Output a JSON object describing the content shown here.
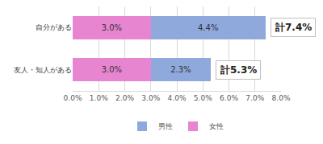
{
  "chart_data": {
    "type": "bar",
    "orientation": "horizontal",
    "stacked": true,
    "data_labels": true,
    "grid": true,
    "legend": "bottom",
    "categories": [
      "自分がある",
      "友人・知人がある"
    ],
    "series": [
      {
        "name": "女性",
        "color": "#e885d0",
        "values": [
          3.0,
          3.0
        ],
        "value_labels": [
          "3.0%",
          "3.0%"
        ]
      },
      {
        "name": "男性",
        "color": "#8fa9dc",
        "values": [
          4.4,
          2.3
        ],
        "value_labels": [
          "4.4%",
          "2.3%"
        ]
      }
    ],
    "xlim": [
      0,
      8
    ],
    "xticks": [
      {
        "value": 0,
        "label": "0.0%"
      },
      {
        "value": 1,
        "label": "1.0%"
      },
      {
        "value": 2,
        "label": "2.0%"
      },
      {
        "value": 3,
        "label": "3.0%"
      },
      {
        "value": 4,
        "label": "4.0%"
      },
      {
        "value": 5,
        "label": "5.0%"
      },
      {
        "value": 6,
        "label": "6.0%"
      },
      {
        "value": 7,
        "label": "7.0%"
      },
      {
        "value": 8,
        "label": "8.0%"
      }
    ],
    "annotations": [
      {
        "text": "計7.4%",
        "category": "自分がある"
      },
      {
        "text": "計5.3%",
        "category": "友人・知人がある"
      }
    ]
  }
}
